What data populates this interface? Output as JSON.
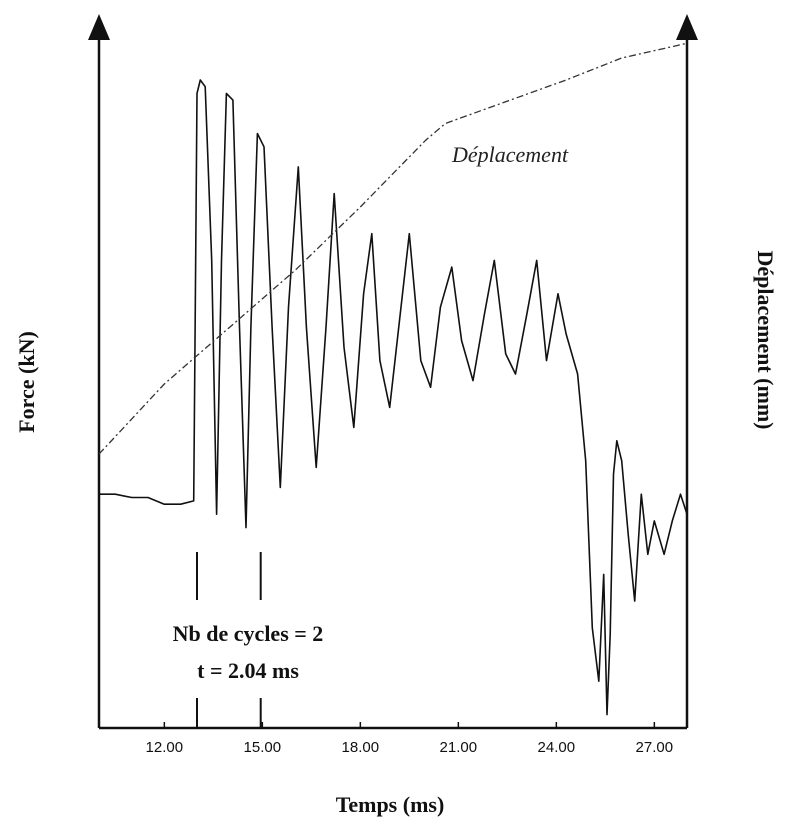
{
  "chart_data": {
    "type": "line",
    "title": "",
    "xlabel": "Temps (ms)",
    "ylabel_left": "Force (kN)",
    "ylabel_right": "Déplacement (mm)",
    "x_ticks": [
      "12.00",
      "15.00",
      "18.00",
      "21.00",
      "24.00",
      "27.00"
    ],
    "x_tick_values": [
      12,
      15,
      18,
      21,
      24,
      27
    ],
    "xlim": [
      10.0,
      28.0
    ],
    "force_ylim": [
      0,
      100
    ],
    "grid": false,
    "series": [
      {
        "name": "",
        "role": "force",
        "style": "solid",
        "x": [
          10.0,
          10.5,
          11.0,
          11.5,
          12.0,
          12.5,
          12.9,
          12.95,
          13.0,
          13.1,
          13.25,
          13.45,
          13.6,
          13.75,
          13.9,
          14.1,
          14.3,
          14.5,
          14.65,
          14.85,
          15.05,
          15.3,
          15.55,
          15.8,
          16.1,
          16.35,
          16.65,
          16.95,
          17.2,
          17.5,
          17.8,
          18.1,
          18.35,
          18.6,
          18.9,
          19.2,
          19.5,
          19.85,
          20.15,
          20.45,
          20.8,
          21.1,
          21.45,
          21.8,
          22.1,
          22.45,
          22.75,
          23.1,
          23.4,
          23.7,
          24.05,
          24.3,
          24.65,
          24.9,
          25.1,
          25.3,
          25.45,
          25.55,
          25.65,
          25.75,
          25.85,
          26.0,
          26.2,
          26.4,
          26.6,
          26.8,
          27.0,
          27.3,
          27.55,
          27.8,
          28.0
        ],
        "y": [
          35,
          35,
          34.5,
          34.5,
          33.5,
          33.5,
          34,
          65,
          95,
          97,
          96,
          70,
          32,
          70,
          95,
          94,
          60,
          30,
          60,
          89,
          87,
          60,
          36,
          63,
          84,
          60,
          39,
          60,
          80,
          57,
          45,
          65,
          74,
          55,
          48,
          61,
          74,
          55,
          51,
          63,
          69,
          58,
          52,
          62,
          70,
          56,
          53,
          62,
          70,
          55,
          65,
          59,
          53,
          40,
          15,
          7,
          23,
          2,
          14,
          38,
          43,
          40,
          29,
          19,
          35,
          26,
          31,
          26,
          31,
          35,
          32
        ]
      },
      {
        "name": "Déplacement",
        "role": "displacement",
        "style": "dashed",
        "x": [
          10.0,
          12.0,
          14.0,
          16.0,
          18.0,
          20.0,
          20.6,
          24.3,
          26.0,
          28.0
        ],
        "y": [
          41,
          51.5,
          60,
          68.5,
          78,
          88,
          90.5,
          97,
          100.3,
          102.5
        ]
      }
    ],
    "annotations": {
      "cycles_label": "Nb de cycles = 2",
      "time_label": "t = 2.04 ms",
      "cycle_markers_x": [
        13.0,
        14.95
      ]
    }
  }
}
